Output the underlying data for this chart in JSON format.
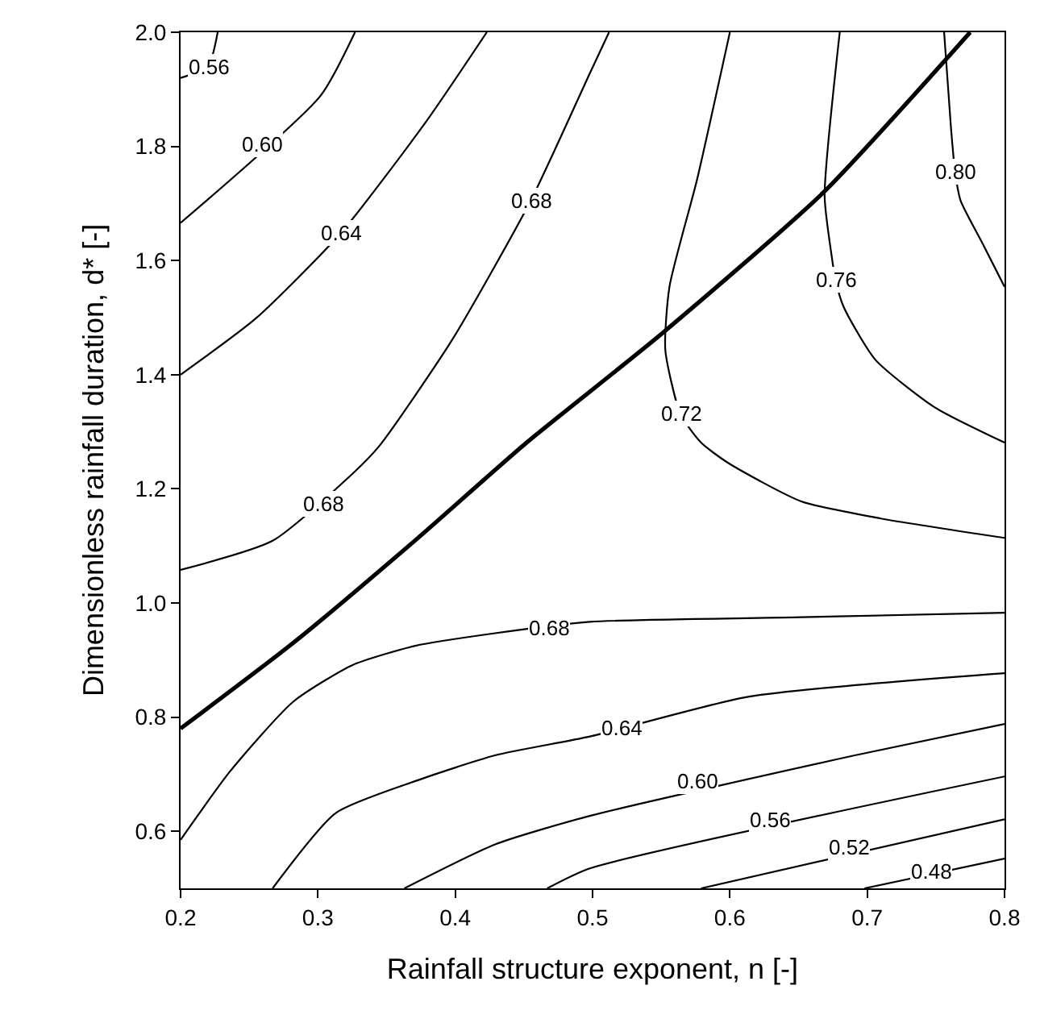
{
  "chart_data": {
    "type": "line",
    "xlabel": "Rainfall structure exponent, n [-]",
    "ylabel": "Dimensionless rainfall duration, d* [-]",
    "xlim": [
      0.2,
      0.8
    ],
    "xticks": [
      0.2,
      0.3,
      0.4,
      0.5,
      0.6,
      0.7,
      0.8
    ],
    "ylim": [
      0.5,
      2.0
    ],
    "yticks": [
      0.6,
      0.8,
      {
        "value": 1,
        "label": "1.0"
      },
      1.2,
      1.4,
      1.6,
      1.8,
      {
        "value": 2,
        "label": "2.0"
      }
    ],
    "marker": "none",
    "line_style": "solid",
    "series": [
      {
        "color": "#000000",
        "x": [
          0.2,
          0.282,
          0.371,
          0.452,
          0.55,
          0.668,
          0.775
        ],
        "values": [
          0.78,
          0.93,
          1.11,
          1.281,
          1.471,
          1.719,
          2.0
        ]
      },
      {
        "color": "#000000",
        "x": [
          0.2,
          0.22,
          0.227
        ],
        "values": [
          1.92,
          1.94,
          2.0
        ]
      },
      {
        "color": "#000000",
        "x": [
          0.2,
          0.302,
          0.327
        ],
        "values": [
          1.666,
          1.889,
          2.0
        ]
      },
      {
        "color": "#000000",
        "x": [
          0.2,
          0.255,
          0.317,
          0.379,
          0.423
        ],
        "values": [
          1.4,
          1.499,
          1.649,
          1.844,
          2.0
        ]
      },
      {
        "color": "#000000",
        "x": [
          0.2,
          0.267,
          0.325,
          0.345,
          0.398,
          0.455,
          0.498,
          0.512
        ],
        "values": [
          1.058,
          1.109,
          1.226,
          1.276,
          1.462,
          1.705,
          1.928,
          2.0
        ]
      },
      {
        "color": "#000000",
        "x": [
          0.6,
          0.576,
          0.556,
          0.553,
          0.564,
          0.579,
          0.599,
          0.652,
          0.71,
          0.8
        ],
        "values": [
          2.0,
          1.741,
          1.554,
          1.443,
          1.331,
          1.281,
          1.245,
          1.178,
          1.148,
          1.114
        ]
      },
      {
        "color": "#000000",
        "x": [
          0.68,
          0.669,
          0.674,
          0.677,
          0.683,
          0.706,
          0.749,
          0.8
        ],
        "values": [
          2.0,
          1.713,
          1.61,
          1.565,
          1.518,
          1.426,
          1.343,
          1.281
        ]
      },
      {
        "color": "#000000",
        "x": [
          0.756,
          0.761,
          0.764,
          0.768,
          0.784,
          0.8
        ],
        "values": [
          2.0,
          1.833,
          1.755,
          1.705,
          1.63,
          1.554
        ]
      },
      {
        "color": "#000000",
        "x": [
          0.2,
          0.236,
          0.282,
          0.325,
          0.371,
          0.429,
          0.498,
          0.652,
          0.8
        ],
        "values": [
          0.585,
          0.705,
          0.827,
          0.891,
          0.925,
          0.947,
          0.967,
          0.975,
          0.983
        ]
      },
      {
        "color": "#000000",
        "x": [
          0.267,
          0.313,
          0.371,
          0.429,
          0.498,
          0.614,
          0.8
        ],
        "values": [
          0.5,
          0.632,
          0.688,
          0.733,
          0.766,
          0.836,
          0.877
        ]
      },
      {
        "color": "#000000",
        "x": [
          0.363,
          0.429,
          0.498,
          0.691,
          0.8
        ],
        "values": [
          0.5,
          0.577,
          0.627,
          0.733,
          0.788
        ]
      },
      {
        "color": "#000000",
        "x": [
          0.467,
          0.498,
          0.8
        ],
        "values": [
          0.5,
          0.535,
          0.696
        ]
      },
      {
        "color": "#000000",
        "x": [
          0.579,
          0.8
        ],
        "values": [
          0.5,
          0.621
        ]
      },
      {
        "color": "#000000",
        "x": [
          0.698,
          0.8
        ],
        "values": [
          0.5,
          0.552
        ]
      }
    ],
    "annotations": [
      {
        "text": "0.56",
        "x": 0.22,
        "y": 1.94
      },
      {
        "text": "0.60",
        "x": 0.259,
        "y": 1.805
      },
      {
        "text": "0.64",
        "x": 0.317,
        "y": 1.649
      },
      {
        "text": "0.68",
        "x": 0.455,
        "y": 1.705
      },
      {
        "text": "0.68",
        "x": 0.304,
        "y": 1.175
      },
      {
        "text": "0.72",
        "x": 0.564,
        "y": 1.331
      },
      {
        "text": "0.76",
        "x": 0.677,
        "y": 1.565
      },
      {
        "text": "0.80",
        "x": 0.764,
        "y": 1.755
      },
      {
        "text": "0.68",
        "x": 0.468,
        "y": 0.955
      },
      {
        "text": "0.64",
        "x": 0.521,
        "y": 0.78
      },
      {
        "text": "0.60",
        "x": 0.576,
        "y": 0.688
      },
      {
        "text": "0.56",
        "x": 0.629,
        "y": 0.621
      },
      {
        "text": "0.52",
        "x": 0.687,
        "y": 0.571
      },
      {
        "text": "0.48",
        "x": 0.747,
        "y": 0.529
      }
    ]
  }
}
